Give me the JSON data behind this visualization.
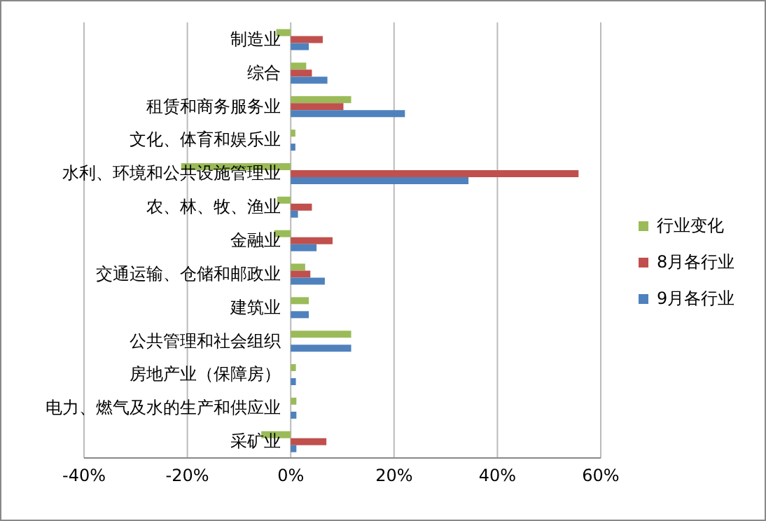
{
  "chart_data": {
    "type": "bar",
    "orientation": "horizontal",
    "categories": [
      "制造业",
      "综合",
      "租赁和商务服务业",
      "文化、体育和娱乐业",
      "水利、环境和公共设施管理业",
      "农、林、牧、渔业",
      "金融业",
      "交通运输、仓储和邮政业",
      "建筑业",
      "公共管理和社会组织",
      "房地产业（保障房）",
      "电力、燃气及水的生产和供应业",
      "采矿业"
    ],
    "series": [
      {
        "name": "行业变化",
        "color": "#9bbb59",
        "values": [
          -2.8,
          3.0,
          11.7,
          0.9,
          -21.2,
          -2.6,
          -3.2,
          2.8,
          3.5,
          11.7,
          1.0,
          1.1,
          -5.7
        ]
      },
      {
        "name": "8月各行业",
        "color": "#c0504d",
        "values": [
          6.2,
          4.1,
          10.2,
          null,
          55.7,
          4.1,
          8.1,
          3.8,
          null,
          null,
          null,
          null,
          6.9
        ]
      },
      {
        "name": "9月各行业",
        "color": "#4f81bd",
        "values": [
          3.5,
          7.1,
          22.1,
          0.9,
          34.4,
          1.4,
          5.0,
          6.6,
          3.5,
          11.7,
          1.0,
          1.1,
          1.1
        ]
      }
    ],
    "xlim": [
      -40,
      60
    ],
    "xticks": [
      {
        "value": -40,
        "label": "-40%"
      },
      {
        "value": -20,
        "label": "-20%"
      },
      {
        "value": 0,
        "label": "0%"
      },
      {
        "value": 20,
        "label": "20%"
      },
      {
        "value": 40,
        "label": "40%"
      },
      {
        "value": 60,
        "label": "60%"
      }
    ],
    "grid": "x",
    "legend": "right"
  }
}
